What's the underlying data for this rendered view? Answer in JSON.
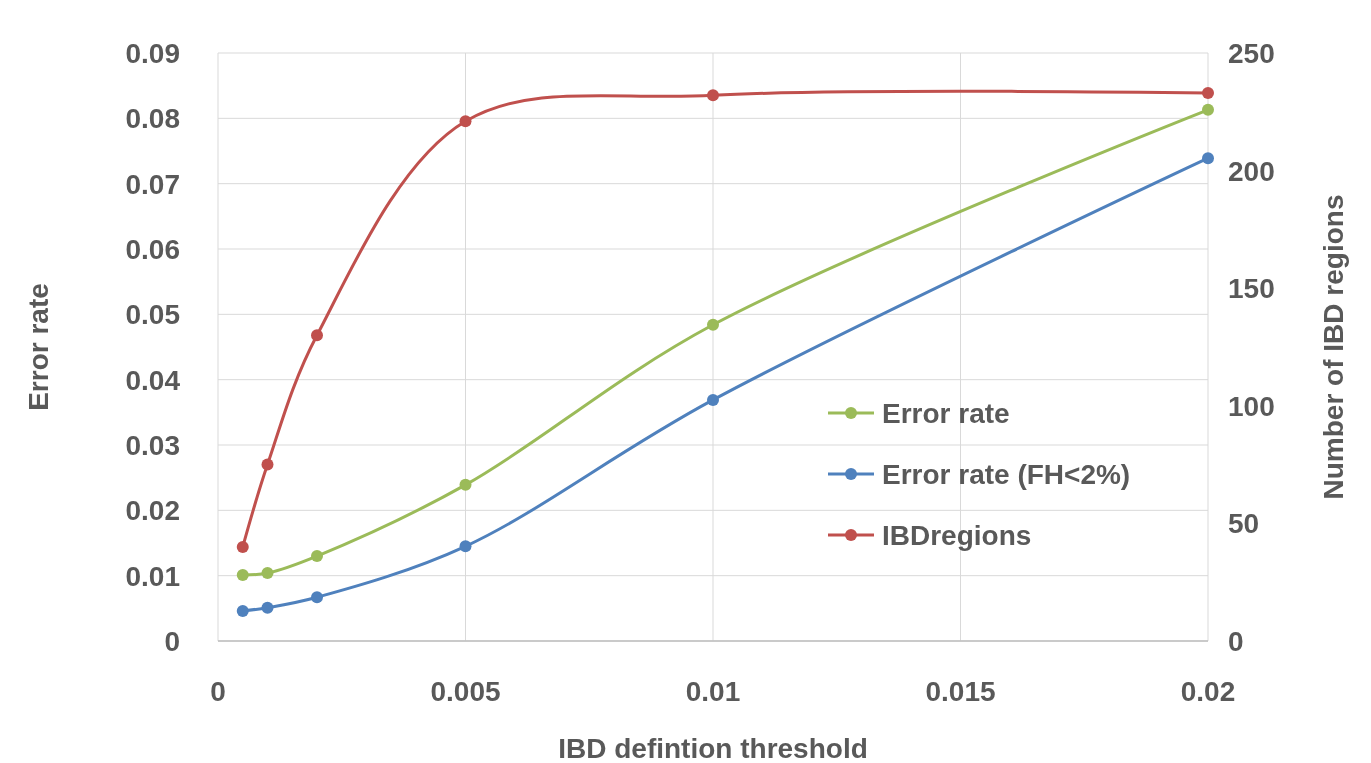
{
  "chart_data": {
    "type": "line",
    "xlabel": "IBD defintion threshold",
    "ylabel": "Error rate",
    "y2label": "Number of IBD regions",
    "x": [
      0.0005,
      0.001,
      0.002,
      0.005,
      0.01,
      0.02
    ],
    "series": [
      {
        "name": "Error rate",
        "color": "#9bbb59",
        "values": [
          0.0101,
          0.0104,
          0.013,
          0.0239,
          0.0484,
          0.0813
        ]
      },
      {
        "name": "Error rate (FH<2%)",
        "color": "#4f81bd",
        "values": [
          0.0046,
          0.0051,
          0.0067,
          0.0145,
          0.0369,
          0.0739
        ]
      },
      {
        "name": "IBDregions",
        "color": "#c0504d",
        "axis": "y2",
        "values": [
          40,
          75,
          130,
          221,
          232,
          233
        ]
      }
    ],
    "xlim": [
      0,
      0.02
    ],
    "xticks": [
      0,
      0.005,
      0.01,
      0.015,
      0.02
    ],
    "ylim": [
      0,
      0.09
    ],
    "yticks": [
      0,
      0.01,
      0.02,
      0.03,
      0.04,
      0.05,
      0.06,
      0.07,
      0.08,
      0.09
    ],
    "y2lim": [
      0,
      250
    ],
    "y2ticks": [
      0,
      50,
      100,
      150,
      200,
      250
    ],
    "grid": true,
    "legend": "right",
    "marker": "circle",
    "line_style": "solid"
  }
}
